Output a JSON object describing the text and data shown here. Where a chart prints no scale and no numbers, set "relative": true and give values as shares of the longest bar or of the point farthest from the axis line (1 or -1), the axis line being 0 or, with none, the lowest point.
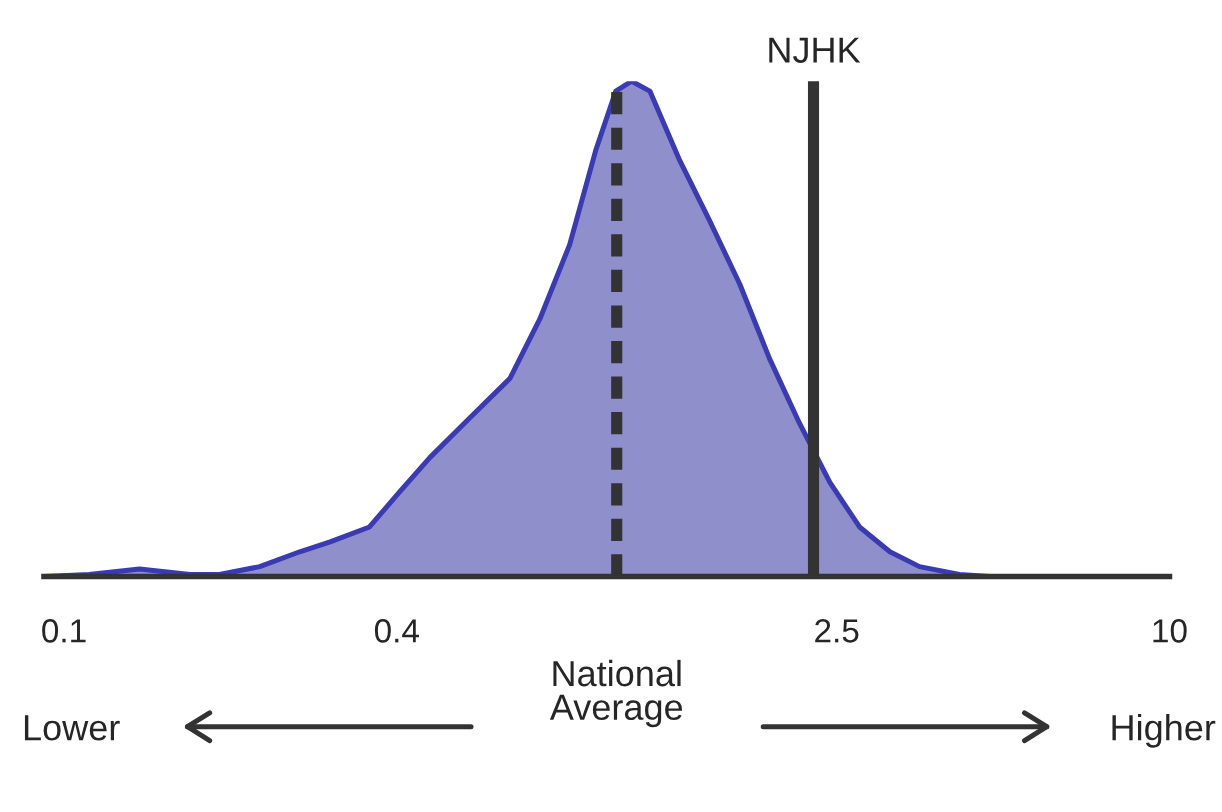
{
  "chart_data": {
    "type": "area",
    "relative": true,
    "log": "x",
    "color": "#8f8fcc",
    "x": [
      0.092,
      0.111,
      0.137,
      0.169,
      0.191,
      0.226,
      0.267,
      0.303,
      0.357,
      0.404,
      0.459,
      0.542,
      0.641,
      0.726,
      0.822,
      0.916,
      0.996,
      1.064,
      1.148,
      1.3,
      1.47,
      1.67,
      1.89,
      2.14,
      2.43,
      2.75,
      3.12,
      3.53,
      4.17,
      4.73
    ],
    "values": [
      0,
      0.004,
      0.015,
      0.004,
      0.004,
      0.02,
      0.05,
      0.07,
      0.1,
      0.17,
      0.24,
      0.32,
      0.4,
      0.52,
      0.67,
      0.86,
      0.98,
      1,
      0.98,
      0.84,
      0.72,
      0.59,
      0.44,
      0.31,
      0.19,
      0.1,
      0.05,
      0.02,
      0.004,
      0
    ],
    "xlim": [
      0.092,
      10
    ],
    "xticks": [
      0.1,
      0.4,
      2.5,
      10
    ],
    "ref_lines": [
      {
        "axis": "x",
        "value": 1,
        "label": "National\nAverage",
        "line_style": "dashed",
        "color": "#333333"
      },
      {
        "axis": "x",
        "value": 2.27,
        "label": "NJHK",
        "line_style": "solid",
        "color": "#333333"
      }
    ],
    "annotations": [
      "Lower",
      "Higher"
    ],
    "grid": false
  }
}
